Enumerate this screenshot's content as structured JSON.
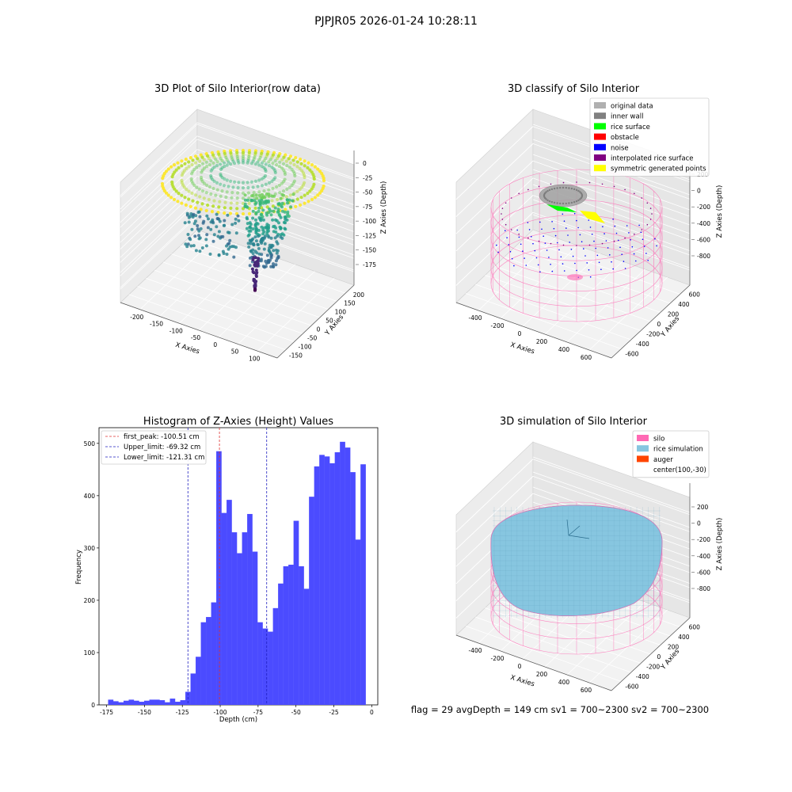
{
  "suptitle": "PJPJR05 2026-01-24 10:28:11",
  "footer": "flag = 29  avgDepth = 149 cm  sv1 = 700~2300  sv2 = 700~2300",
  "colors": {
    "histogram_bars": "#4b4bff",
    "peak_line": "#e03030",
    "limit_lines": "#2020c0",
    "silo": "#ff69b4",
    "rice_simulation": "#87c6e0",
    "auger": "#ff4500"
  },
  "chart_data": [
    {
      "type": "scatter",
      "projection": "3d",
      "title": "3D Plot of Silo Interior(row data)",
      "xlabel": "X Axies",
      "ylabel": "Y Axies",
      "zlabel": "Z Axies (Depth)",
      "x_ticks": [
        "-200",
        "-150",
        "-100",
        "-50",
        "0",
        "50",
        "100"
      ],
      "y_ticks": [
        "-150",
        "-100",
        "-50",
        "0",
        "50",
        "100",
        "150",
        "200"
      ],
      "z_ticks": [
        "0",
        "-25",
        "-50",
        "-75",
        "-100",
        "-125",
        "-150",
        "-175"
      ],
      "colormap": "viridis",
      "xlim": [
        -230,
        110
      ],
      "ylim": [
        -160,
        220
      ],
      "zlim": [
        -185,
        5
      ]
    },
    {
      "type": "scatter",
      "projection": "3d",
      "title": "3D classify of Silo Interior",
      "xlabel": "X Axies",
      "ylabel": "Y Axies",
      "zlabel": "Z Axies (Depth)",
      "x_ticks": [
        "-400",
        "-200",
        "0",
        "200",
        "400",
        "600"
      ],
      "y_ticks": [
        "-600",
        "-400",
        "-200",
        "0",
        "200",
        "400",
        "600"
      ],
      "z_ticks": [
        "200",
        "0",
        "-200",
        "-400",
        "-600",
        "-800"
      ],
      "legend_position": "upper-right",
      "legend": [
        {
          "label": "original data",
          "color": "#b0b0b0"
        },
        {
          "label": "inner wall",
          "color": "#808080"
        },
        {
          "label": "rice surface",
          "color": "#00ff00"
        },
        {
          "label": "obstacle",
          "color": "#ff0000"
        },
        {
          "label": "noise",
          "color": "#0000ff"
        },
        {
          "label": "interpolated rice surface",
          "color": "#800080"
        },
        {
          "label": "symmetric generated points",
          "color": "#ffff00"
        }
      ]
    },
    {
      "type": "bar",
      "title": "Histogram of Z-Axies (Height) Values",
      "xlabel": "Depth (cm)",
      "ylabel": "Frequency",
      "x_ticks": [
        -175,
        -150,
        -125,
        -100,
        -75,
        -50,
        -25,
        0
      ],
      "y_ticks": [
        0,
        100,
        200,
        300,
        400,
        500
      ],
      "xlim": [
        -180,
        4
      ],
      "ylim": [
        0,
        530
      ],
      "bin_start": -174,
      "bin_width": 3.4,
      "values": [
        10,
        7,
        5,
        8,
        10,
        8,
        6,
        8,
        10,
        10,
        9,
        5,
        12,
        6,
        9,
        25,
        60,
        92,
        158,
        168,
        196,
        485,
        367,
        392,
        330,
        290,
        330,
        365,
        293,
        158,
        146,
        140,
        185,
        232,
        265,
        268,
        352,
        265,
        222,
        398,
        456,
        478,
        475,
        462,
        483,
        503,
        492,
        445,
        316,
        460
      ],
      "vlines": [
        {
          "label": "first_peak: -100.51 cm",
          "x": -100.51,
          "color": "#e03030"
        },
        {
          "label": "Upper_limit: -69.32 cm",
          "x": -69.32,
          "color": "#2020c0"
        },
        {
          "label": "Lower_limit: -121.31 cm",
          "x": -121.31,
          "color": "#2020c0"
        }
      ],
      "legend_position": "upper-left"
    },
    {
      "type": "surface",
      "projection": "3d",
      "title": "3D simulation of Silo Interior",
      "xlabel": "X Axies",
      "ylabel": "Y Axies",
      "zlabel": "Z Axies (Depth)",
      "x_ticks": [
        "-400",
        "-200",
        "0",
        "200",
        "400",
        "600"
      ],
      "y_ticks": [
        "-600",
        "-400",
        "-200",
        "0",
        "200",
        "400",
        "600"
      ],
      "z_ticks": [
        "200",
        "0",
        "-200",
        "-400",
        "-600",
        "-800"
      ],
      "legend_position": "upper-right",
      "legend": [
        {
          "label": "silo",
          "color": "#ff69b4"
        },
        {
          "label": "rice simulation",
          "color": "#87c6e0"
        },
        {
          "label": "auger",
          "color": "#ff4500"
        },
        {
          "label": "center(100,-30)",
          "color": ""
        }
      ]
    }
  ]
}
